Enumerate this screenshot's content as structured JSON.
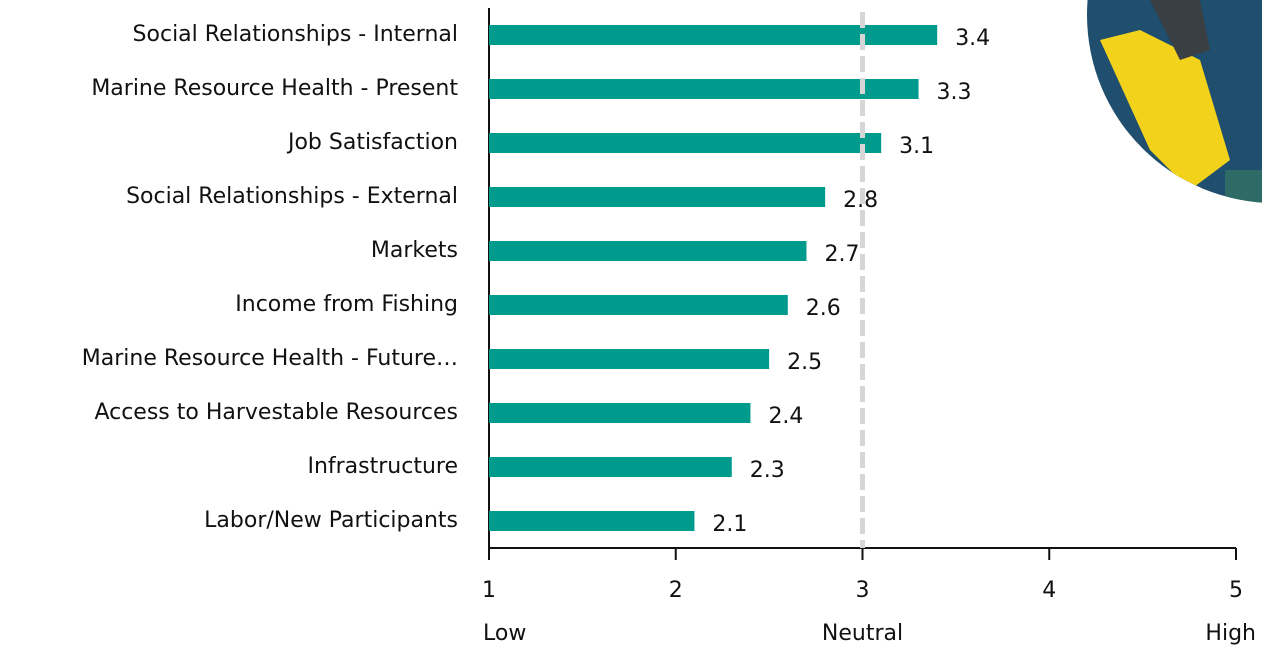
{
  "chart_data": {
    "type": "bar",
    "orientation": "horizontal",
    "categories": [
      "Social Relationships - Internal",
      "Marine Resource Health - Present",
      "Job Satisfaction",
      "Social Relationships - External",
      "Markets",
      "Income from Fishing",
      "Marine Resource Health - Future…",
      "Access to Harvestable Resources",
      "Infrastructure",
      "Labor/New Participants"
    ],
    "values": [
      3.4,
      3.3,
      3.1,
      2.8,
      2.7,
      2.6,
      2.5,
      2.4,
      2.3,
      2.1
    ],
    "color": "#009b8c",
    "xlim": [
      1,
      5
    ],
    "xticks": [
      1,
      2,
      3,
      4,
      5
    ],
    "scale_labels": [
      {
        "value": 1,
        "label": "Low"
      },
      {
        "value": 3,
        "label": "Neutral"
      },
      {
        "value": 5,
        "label": "High"
      }
    ],
    "reference_line": 3
  }
}
